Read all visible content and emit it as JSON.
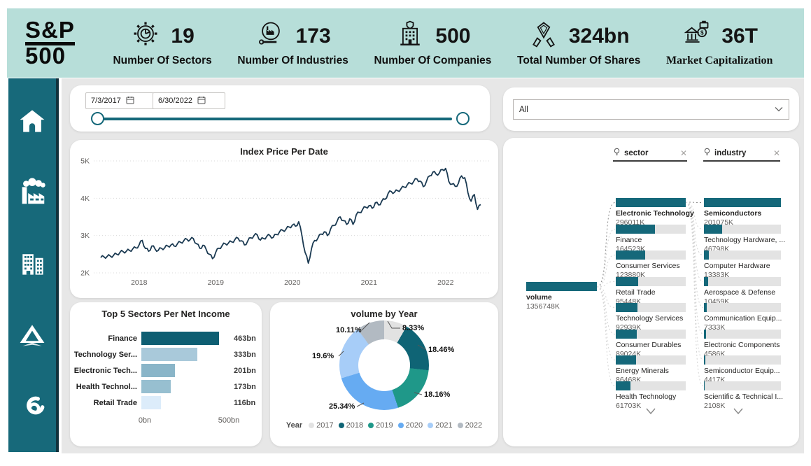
{
  "header": {
    "logo": {
      "line1": "S&P",
      "line2": "500"
    },
    "kpis": [
      {
        "icon": "sectors-gear-pie-icon",
        "value": "19",
        "label": "Number Of Sectors"
      },
      {
        "icon": "industries-factory-gear-icon",
        "value": "173",
        "label": "Number Of Industries"
      },
      {
        "icon": "companies-building-icon",
        "value": "500",
        "label": "Number Of Companies"
      },
      {
        "icon": "shares-hands-icon",
        "value": "324bn",
        "label": "Total Number Of Shares"
      },
      {
        "icon": "market-cap-bank-icon",
        "value": "36T",
        "label": "Market Capitalization"
      }
    ]
  },
  "sidebar": {
    "items": [
      {
        "icon": "home-icon"
      },
      {
        "icon": "factory-icon"
      },
      {
        "icon": "buildings-icon"
      },
      {
        "icon": "delta-icon"
      },
      {
        "icon": "swirl-logo-icon"
      }
    ]
  },
  "filters": {
    "date_start": "7/3/2017",
    "date_end": "6/30/2022",
    "dropdown_value": "All"
  },
  "tree": {
    "fields": [
      {
        "label": "sector"
      },
      {
        "label": "industry"
      }
    ],
    "root": {
      "label": "volume",
      "value": "1356748K"
    },
    "sectors": [
      {
        "name": "Electronic Technology",
        "value": "296011K",
        "fill": 1,
        "bold": true
      },
      {
        "name": "Finance",
        "value": "164523K",
        "fill": 0.556
      },
      {
        "name": "Consumer Services",
        "value": "123880K",
        "fill": 0.419
      },
      {
        "name": "Retail Trade",
        "value": "95448K",
        "fill": 0.322
      },
      {
        "name": "Technology Services",
        "value": "92939K",
        "fill": 0.314
      },
      {
        "name": "Consumer Durables",
        "value": "89024K",
        "fill": 0.301
      },
      {
        "name": "Energy Minerals",
        "value": "86468K",
        "fill": 0.292
      },
      {
        "name": "Health Technology",
        "value": "61703K",
        "fill": 0.208
      }
    ],
    "industries": [
      {
        "name": "Semiconductors",
        "value": "201075K",
        "fill": 1,
        "bold": true
      },
      {
        "name": "Technology Hardware, ...",
        "value": "46798K",
        "fill": 0.233
      },
      {
        "name": "Computer Hardware",
        "value": "13383K",
        "fill": 0.067
      },
      {
        "name": "Aerospace & Defense",
        "value": "10459K",
        "fill": 0.052
      },
      {
        "name": "Communication Equip...",
        "value": "7333K",
        "fill": 0.036
      },
      {
        "name": "Electronic Components",
        "value": "4586K",
        "fill": 0.023
      },
      {
        "name": "Semiconductor Equip...",
        "value": "4417K",
        "fill": 0.022
      },
      {
        "name": "Scientific & Technical I...",
        "value": "2108K",
        "fill": 0.01
      }
    ]
  },
  "chart_data": [
    {
      "type": "line",
      "title": "Index Price Per Date",
      "x_range": [
        "7/3/2017",
        "6/30/2022"
      ],
      "xticks": [
        "2018",
        "2019",
        "2020",
        "2021",
        "2022"
      ],
      "yticks": [
        "2K",
        "3K",
        "4K",
        "5K"
      ],
      "ylim": [
        2,
        5
      ],
      "unit": "K",
      "line_color": "#1b3a52",
      "values": [
        2.41,
        2.43,
        2.44,
        2.45,
        2.47,
        2.5,
        2.55,
        2.57,
        2.58,
        2.6,
        2.64,
        2.67,
        2.75,
        2.87,
        2.65,
        2.58,
        2.72,
        2.64,
        2.6,
        2.66,
        2.67,
        2.72,
        2.75,
        2.72,
        2.78,
        2.82,
        2.86,
        2.9,
        2.89,
        2.92,
        2.78,
        2.66,
        2.74,
        2.63,
        2.5,
        2.38,
        2.55,
        2.66,
        2.73,
        2.78,
        2.8,
        2.83,
        2.89,
        2.93,
        2.86,
        2.75,
        2.85,
        2.94,
        3.0,
        3.02,
        2.88,
        2.92,
        2.98,
        3.0,
        2.95,
        3.03,
        3.1,
        3.14,
        3.17,
        3.23,
        3.28,
        3.25,
        3.37,
        3.0,
        2.55,
        2.26,
        2.65,
        2.87,
        2.93,
        3.04,
        3.1,
        3.0,
        3.18,
        3.27,
        3.38,
        3.5,
        3.4,
        3.3,
        3.45,
        3.3,
        3.55,
        3.62,
        3.7,
        3.76,
        3.8,
        3.73,
        3.88,
        3.82,
        3.92,
        3.97,
        4.13,
        4.18,
        4.16,
        4.2,
        4.25,
        4.3,
        4.36,
        4.4,
        4.45,
        4.52,
        4.46,
        4.31,
        4.45,
        4.6,
        4.7,
        4.65,
        4.67,
        4.77,
        4.8,
        4.45,
        4.38,
        4.32,
        4.4,
        4.6,
        4.55,
        4.15,
        3.92,
        4.1,
        3.7,
        3.83
      ]
    },
    {
      "type": "bar",
      "title": "Top 5 Sectors Per Net Income",
      "categories": [
        "Finance",
        "Technology Ser...",
        "Electronic Tech...",
        "Health Technol...",
        "Retail Trade"
      ],
      "values": [
        463,
        333,
        201,
        173,
        116
      ],
      "labels": [
        "463bn",
        "333bn",
        "201bn",
        "173bn",
        "116bn"
      ],
      "xlabel_ticks": [
        "0bn",
        "500bn"
      ],
      "xlim": [
        0,
        500
      ],
      "colors": [
        "#0e5e72",
        "#a9c9da",
        "#8ab5c8",
        "#97bfd0",
        "#dcecfa"
      ]
    },
    {
      "type": "pie",
      "title": "volume by Year",
      "legend_title": "Year",
      "categories": [
        "2017",
        "2018",
        "2019",
        "2020",
        "2021",
        "2022"
      ],
      "values": [
        8.33,
        18.46,
        18.16,
        25.34,
        19.6,
        10.11
      ],
      "labels": [
        "8.33%",
        "18.46%",
        "18.16%",
        "25.34%",
        "19.6%",
        "10.11%"
      ],
      "colors": [
        "#e2e2e2",
        "#0f6475",
        "#1f9889",
        "#66abf2",
        "#a7cdf8",
        "#b2bac2"
      ]
    }
  ],
  "colors": {
    "accent_teal": "#15687a",
    "header_bg": "#b7ded9",
    "sidebar_bg": "#17697a",
    "page_bg": "#e7e7e7",
    "line_navy": "#1b3a52"
  }
}
